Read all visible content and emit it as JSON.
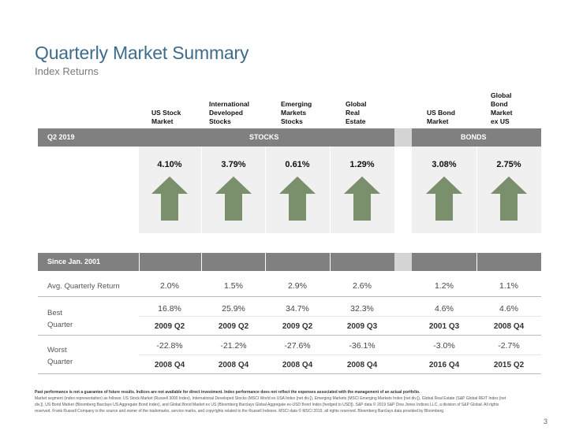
{
  "title": "Quarterly Market Summary",
  "subtitle": "Index Returns",
  "columns": [
    {
      "lines": [
        "US Stock",
        "Market"
      ]
    },
    {
      "lines": [
        "International",
        "Developed",
        "Stocks"
      ]
    },
    {
      "lines": [
        "Emerging",
        "Markets",
        "Stocks"
      ]
    },
    {
      "lines": [
        "Global",
        "Real",
        "Estate"
      ]
    },
    {
      "lines": [
        "US Bond",
        "Market"
      ]
    },
    {
      "lines": [
        "Global",
        "Bond",
        "Market",
        "ex US"
      ]
    }
  ],
  "quarter_section": {
    "label": "Q2 2019",
    "stocks_label": "STOCKS",
    "bonds_label": "BONDS",
    "returns": [
      "4.10%",
      "3.79%",
      "0.61%",
      "1.29%",
      "3.08%",
      "2.75%"
    ],
    "direction": [
      "up",
      "up",
      "up",
      "up",
      "up",
      "up"
    ],
    "arrow_color": "#7a8f6b"
  },
  "since_section": {
    "label": "Since Jan. 2001",
    "avg_label": "Avg. Quarterly Return",
    "avg": [
      "2.0%",
      "1.5%",
      "2.9%",
      "2.6%",
      "1.2%",
      "1.1%"
    ],
    "best_label_1": "Best",
    "best_label_2": "Quarter",
    "best": [
      "16.8%",
      "25.9%",
      "34.7%",
      "32.3%",
      "4.6%",
      "4.6%"
    ],
    "best_q": [
      "2009 Q2",
      "2009 Q2",
      "2009 Q2",
      "2009 Q3",
      "2001 Q3",
      "2008 Q4"
    ],
    "worst_label_1": "Worst",
    "worst_label_2": "Quarter",
    "worst": [
      "-22.8%",
      "-21.2%",
      "-27.6%",
      "-36.1%",
      "-3.0%",
      "-2.7%"
    ],
    "worst_q": [
      "2008 Q4",
      "2008 Q4",
      "2008 Q4",
      "2008 Q4",
      "2016 Q4",
      "2015 Q2"
    ]
  },
  "footer": {
    "bold": "Past performance is not a guarantee of future results. Indices are not available for direct investment. Index performance does not reflect the expenses associated with the management of an actual portfolio.",
    "text": "Market segment (index representation) as follows: US Stock Market (Russell 3000 Index), International Developed Stocks (MSCI World ex USA Index [net div.]), Emerging Markets (MSCI Emerging Markets Index [net div.]), Global Real Estate (S&P Global REIT Index [net div.]), US Bond Market (Bloomberg Barclays US Aggregate Bond Index), and Global Bond Market ex US (Bloomberg Barclays Global Aggregate ex-USD Bond Index [hedged to USD]). S&P data © 2019 S&P Dow Jones Indices LLC, a division of S&P Global. All rights reserved. Frank Russell Company is the source and owner of the trademarks, service marks, and copyrights related to the Russell Indexes. MSCI data © MSCI 2019, all rights reserved. Bloomberg Barclays data provided by Bloomberg."
  },
  "page_number": "3",
  "colors": {
    "accent": "#3d6b8c",
    "header_bar": "#808080",
    "panel": "#f0f0f0"
  }
}
